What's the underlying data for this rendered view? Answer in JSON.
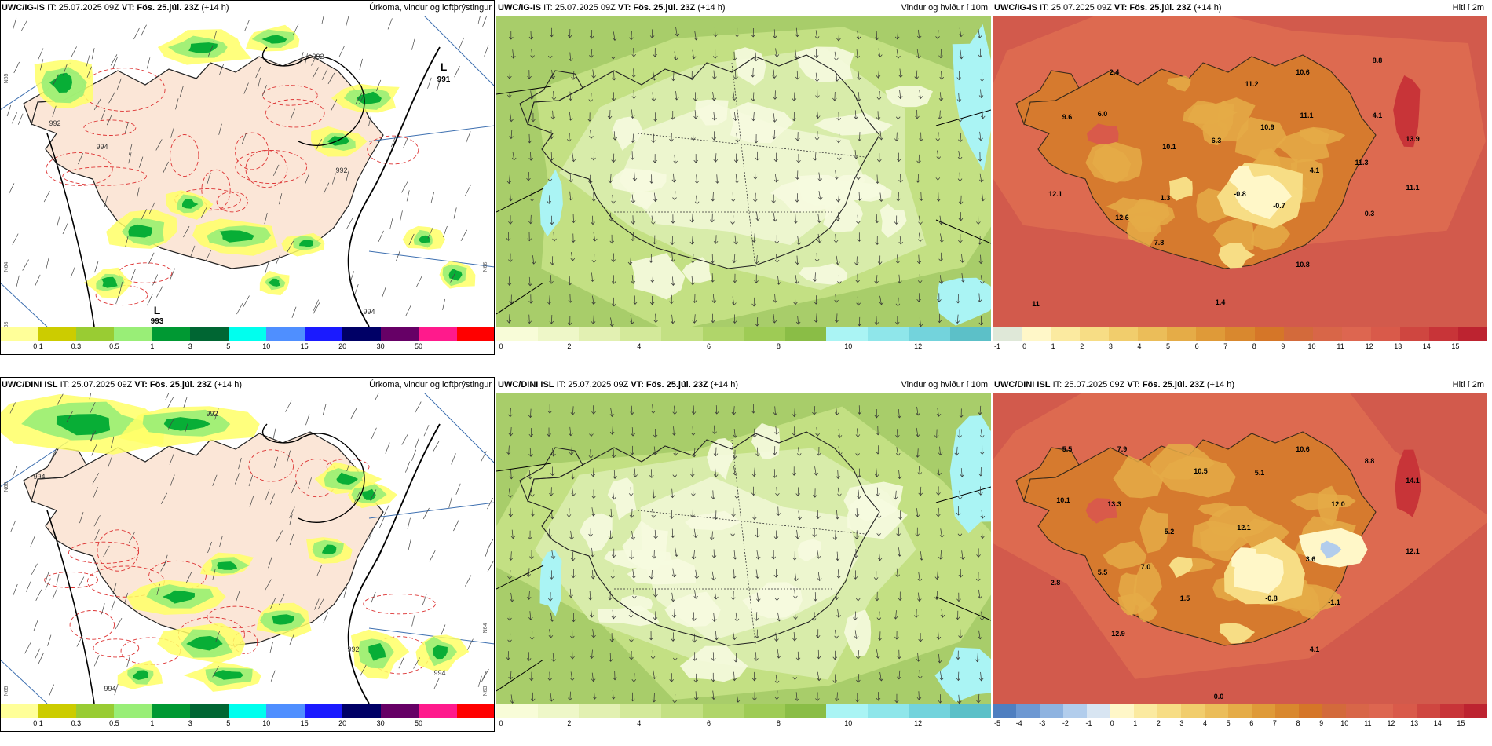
{
  "panels": [
    {
      "id": "p11",
      "model": "UWC/IG-IS",
      "it": "IT: 25.07.2025 09Z",
      "vt_label": "VT:",
      "vt": "Fös. 25.júl. 23Z",
      "lead": "(+14 h)",
      "title": "Úrkoma, vindur og loftþrýstingur",
      "kind": "precip"
    },
    {
      "id": "p12",
      "model": "UWC/IG-IS",
      "it": "IT: 25.07.2025 09Z",
      "vt_label": "VT:",
      "vt": "Fös. 25.júl. 23Z",
      "lead": "(+14 h)",
      "title": "Vindur og hviður í 10m",
      "kind": "wind"
    },
    {
      "id": "p13",
      "model": "UWC/IG-IS",
      "it": "IT: 25.07.2025 09Z",
      "vt_label": "VT:",
      "vt": "Fös. 25.júl. 23Z",
      "lead": "(+14 h)",
      "title": "Hiti í 2m",
      "kind": "temp"
    },
    {
      "id": "p21",
      "model": "UWC/DINI ISL",
      "it": "IT: 25.07.2025 09Z",
      "vt_label": "VT:",
      "vt": "Fös. 25.júl. 23Z",
      "lead": "(+14 h)",
      "title": "Úrkoma, vindur og loftþrýstingur",
      "kind": "precip"
    },
    {
      "id": "p22",
      "model": "UWC/DINI ISL",
      "it": "IT: 25.07.2025 09Z",
      "vt_label": "VT:",
      "vt": "Fös. 25.júl. 23Z",
      "lead": "(+14 h)",
      "title": "Vindur og hviður í 10m",
      "kind": "wind"
    },
    {
      "id": "p23",
      "model": "UWC/DINI ISL",
      "it": "IT: 25.07.2025 09Z",
      "vt_label": "VT:",
      "vt": "Fös. 25.júl. 23Z",
      "lead": "(+14 h)",
      "title": "Hiti í 2m",
      "kind": "temp"
    }
  ],
  "precip_map_labels": {
    "top": {
      "low_letters": [
        "L",
        "L"
      ],
      "low_values": [
        "991",
        "993"
      ],
      "isobars": [
        "992",
        "992",
        "992",
        "994",
        "994"
      ],
      "lat_labels": [
        "N65",
        "N64",
        "N63",
        "N66"
      ]
    },
    "bottom": {
      "isobars": [
        "994",
        "992",
        "994",
        "992",
        "994"
      ],
      "lat_labels": [
        "N66",
        "N65",
        "N64",
        "N63"
      ]
    }
  },
  "temp_map_labels": {
    "top": [
      "2.4",
      "10.6",
      "8.8",
      "11.2",
      "9.6",
      "6.0",
      "10.9",
      "11.1",
      "4.1",
      "13.9",
      "10.1",
      "6.3",
      "11.3",
      "4.1",
      "11.1",
      "12.1",
      "1.3",
      "-0.8",
      "-0.7",
      "12.6",
      "0.3",
      "7.8",
      "10.8",
      "1.4",
      "11"
    ],
    "bottom": [
      "5.5",
      "7.9",
      "10.6",
      "8.8",
      "10.5",
      "5.1",
      "14.1",
      "10.1",
      "13.3",
      "12.0",
      "5.2",
      "12.1",
      "12.1",
      "5.5",
      "7.0",
      "3.6",
      "2.8",
      "1.5",
      "-0.8",
      "-1.1",
      "12.9",
      "4.1",
      "0.0"
    ]
  },
  "colorbars": {
    "precip": {
      "ticks": [
        "0.1",
        "0.3",
        "0.5",
        "1",
        "3",
        "5",
        "10",
        "15",
        "20",
        "30",
        "50"
      ],
      "colors": [
        "#ffff99",
        "#cccc00",
        "#99cc33",
        "#99ee77",
        "#009933",
        "#006633",
        "#00ffee",
        "#4f8fff",
        "#1a1aff",
        "#000066",
        "#660066",
        "#ff1a8c",
        "#ff0000"
      ]
    },
    "wind": {
      "ticks": [
        "0",
        "2",
        "4",
        "6",
        "8",
        "10",
        "12"
      ],
      "colors": [
        "#f8fcd8",
        "#eef7c8",
        "#e2f0b2",
        "#d3e99a",
        "#c3e083",
        "#b0d56a",
        "#9ecb55",
        "#8abd46",
        "#aaf4f4",
        "#8fe6ea",
        "#73d3dc",
        "#5cc0c8"
      ]
    },
    "temp_top": {
      "ticks": [
        "-1",
        "0",
        "1",
        "2",
        "3",
        "4",
        "5",
        "6",
        "7",
        "8",
        "9",
        "10",
        "11",
        "12",
        "13",
        "14",
        "15"
      ],
      "colors": [
        "#dfe8d8",
        "#fff7c8",
        "#fbeaa0",
        "#f7dd85",
        "#f1cd6c",
        "#ebbd59",
        "#e5ac47",
        "#df9a38",
        "#d9882e",
        "#d57628",
        "#d36a3b",
        "#d86648",
        "#dd6650",
        "#d95a4a",
        "#cf4640",
        "#c83438",
        "#bd2330"
      ]
    },
    "temp_bottom": {
      "ticks": [
        "-5",
        "-4",
        "-3",
        "-2",
        "-1",
        "0",
        "1",
        "2",
        "3",
        "4",
        "5",
        "6",
        "7",
        "8",
        "9",
        "10",
        "11",
        "12",
        "13",
        "14",
        "15"
      ],
      "colors": [
        "#4f7fc0",
        "#6d98d2",
        "#8eb3e0",
        "#b2cdec",
        "#d8e5f2",
        "#fff7c8",
        "#fbeaa0",
        "#f7dd85",
        "#f1cd6c",
        "#ebbd59",
        "#e5ac47",
        "#df9a38",
        "#d9882e",
        "#d57628",
        "#d36a3b",
        "#d86648",
        "#dd6650",
        "#d95a4a",
        "#cf4640",
        "#c83438",
        "#bd2330"
      ]
    }
  },
  "colors": {
    "land_precip": "#fbe6d7",
    "sea_precip": "#ffffff",
    "wind_base": "#c7e08e",
    "temp_base": "#e07a4e",
    "coast": "#222222"
  }
}
